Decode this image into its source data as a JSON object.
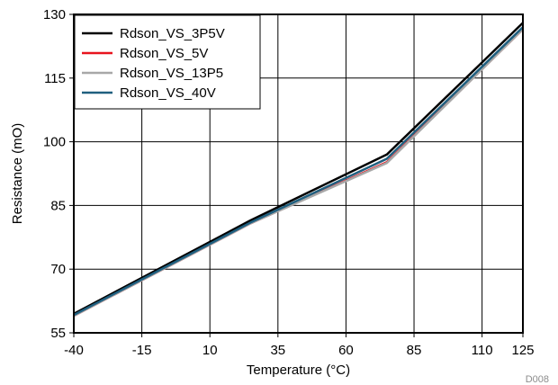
{
  "chart_data": {
    "type": "line",
    "title": "",
    "xlabel": "Temperature (°C)",
    "ylabel": "Resistance (mO)",
    "figure_id": "D008",
    "xlim": [
      -40,
      125
    ],
    "ylim": [
      55,
      130
    ],
    "x_ticks": [
      -40,
      -15,
      10,
      35,
      60,
      85,
      110,
      125
    ],
    "y_ticks": [
      55,
      70,
      85,
      100,
      115,
      130
    ],
    "grid": true,
    "legend_position": "top-left",
    "series": [
      {
        "name": "Rdson_VS_3P5V",
        "color": "#000000",
        "x": [
          -40,
          25,
          75,
          125
        ],
        "y": [
          59.5,
          81.5,
          97,
          128
        ]
      },
      {
        "name": "Rdson_VS_5V",
        "color": "#e8141e",
        "x": [
          -40,
          25,
          75,
          125
        ],
        "y": [
          59,
          80.8,
          95.2,
          126.5
        ]
      },
      {
        "name": "Rdson_VS_13P5",
        "color": "#a8a8a8",
        "x": [
          -40,
          25,
          75,
          125
        ],
        "y": [
          59,
          80.8,
          95,
          126.5
        ]
      },
      {
        "name": "Rdson_VS_40V",
        "color": "#1f5f7f",
        "x": [
          -40,
          25,
          75,
          125
        ],
        "y": [
          59.2,
          81,
          96,
          127
        ]
      }
    ]
  }
}
